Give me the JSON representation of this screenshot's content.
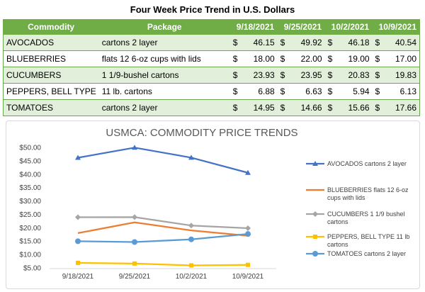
{
  "title": "Four Week Price Trend in U.S. Dollars",
  "table": {
    "headers": [
      "Commodity",
      "Package",
      "9/18/2021",
      "9/25/2021",
      "10/2/2021",
      "10/9/2021"
    ],
    "currency_symbol": "$",
    "rows": [
      {
        "commodity": "AVOCADOS",
        "package": "cartons 2 layer",
        "prices": [
          "46.15",
          "49.92",
          "46.18",
          "40.54"
        ]
      },
      {
        "commodity": "BLUEBERRIES",
        "package": "flats 12 6-oz cups with lids",
        "prices": [
          "18.00",
          "22.00",
          "19.00",
          "17.00"
        ]
      },
      {
        "commodity": "CUCUMBERS",
        "package": "1 1/9-bushel cartons",
        "prices": [
          "23.93",
          "23.95",
          "20.83",
          "19.83"
        ]
      },
      {
        "commodity": "PEPPERS, BELL TYPE",
        "package": "11 lb. cartons",
        "prices": [
          "6.88",
          "6.63",
          "5.94",
          "6.13"
        ]
      },
      {
        "commodity": "TOMATOES",
        "package": "cartons 2 layer",
        "prices": [
          "14.95",
          "14.66",
          "15.66",
          "17.66"
        ]
      }
    ]
  },
  "colors": {
    "header_green": "#70ad47",
    "row_light": "#e2efda"
  },
  "chart_data": {
    "type": "line",
    "title": "USMCA: COMMODITY PRICE TRENDS",
    "categories": [
      "9/18/2021",
      "9/25/2021",
      "10/2/2021",
      "10/9/2021"
    ],
    "yticks": [
      "$5.00",
      "$10.00",
      "$15.00",
      "$20.00",
      "$25.00",
      "$30.00",
      "$35.00",
      "$40.00",
      "$45.00",
      "$50.00"
    ],
    "ylim": [
      5,
      50
    ],
    "grid": false,
    "legend_position": "right",
    "series": [
      {
        "name": "AVOCADOS cartons 2 layer",
        "values": [
          46.15,
          49.92,
          46.18,
          40.54
        ],
        "color": "#4472c4",
        "marker": "triangle"
      },
      {
        "name": "BLUEBERRIES flats 12 6-oz cups with lids",
        "values": [
          18.0,
          22.0,
          19.0,
          17.0
        ],
        "color": "#ed7d31",
        "marker": "none"
      },
      {
        "name": "CUCUMBERS 1 1/9 bushel cartons",
        "values": [
          23.93,
          23.95,
          20.83,
          19.83
        ],
        "color": "#a5a5a5",
        "marker": "diamond"
      },
      {
        "name": "PEPPERS, BELL TYPE 11 lb cartons",
        "values": [
          6.88,
          6.63,
          5.94,
          6.13
        ],
        "color": "#ffc000",
        "marker": "square"
      },
      {
        "name": "TOMATOES cartons 2 layer",
        "values": [
          14.95,
          14.66,
          15.66,
          17.66
        ],
        "color": "#5b9bd5",
        "marker": "circle"
      }
    ]
  }
}
